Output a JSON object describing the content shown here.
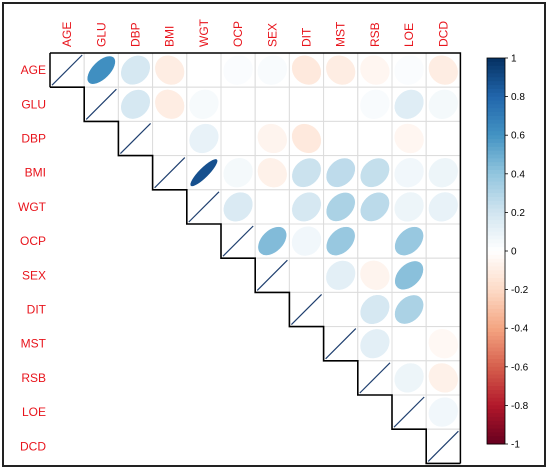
{
  "chart_data": {
    "type": "heatmap",
    "title": "",
    "variables": [
      "AGE",
      "GLU",
      "DBP",
      "BMI",
      "WGT",
      "OCP",
      "SEX",
      "DIT",
      "MST",
      "RSB",
      "LOE",
      "DCD"
    ],
    "colorbar": {
      "range": [
        -1,
        1
      ],
      "ticks": [
        "1",
        "0.8",
        "0.6",
        "0.4",
        "0.2",
        "0",
        "-0.2",
        "-0.4",
        "-0.6",
        "-0.8",
        "-1"
      ]
    },
    "colors": {
      "positive": "#053061",
      "mid": "#ffffff",
      "negative": "#67001f",
      "label": "#e8141c"
    },
    "correlations": [
      {
        "row": "AGE",
        "col": "GLU",
        "r": 0.62
      },
      {
        "row": "AGE",
        "col": "DBP",
        "r": 0.18
      },
      {
        "row": "AGE",
        "col": "BMI",
        "r": -0.1
      },
      {
        "row": "AGE",
        "col": "WGT",
        "r": 0.0
      },
      {
        "row": "AGE",
        "col": "OCP",
        "r": 0.02
      },
      {
        "row": "AGE",
        "col": "SEX",
        "r": 0.03
      },
      {
        "row": "AGE",
        "col": "DIT",
        "r": -0.12
      },
      {
        "row": "AGE",
        "col": "MST",
        "r": -0.1
      },
      {
        "row": "AGE",
        "col": "RSB",
        "r": -0.05
      },
      {
        "row": "AGE",
        "col": "LOE",
        "r": 0.02
      },
      {
        "row": "AGE",
        "col": "DCD",
        "r": -0.1
      },
      {
        "row": "GLU",
        "col": "DBP",
        "r": 0.18
      },
      {
        "row": "GLU",
        "col": "BMI",
        "r": -0.1
      },
      {
        "row": "GLU",
        "col": "WGT",
        "r": 0.04
      },
      {
        "row": "GLU",
        "col": "OCP",
        "r": 0.0
      },
      {
        "row": "GLU",
        "col": "SEX",
        "r": 0.0
      },
      {
        "row": "GLU",
        "col": "DIT",
        "r": 0.0
      },
      {
        "row": "GLU",
        "col": "MST",
        "r": 0.0
      },
      {
        "row": "GLU",
        "col": "RSB",
        "r": 0.03
      },
      {
        "row": "GLU",
        "col": "LOE",
        "r": 0.14
      },
      {
        "row": "GLU",
        "col": "DCD",
        "r": 0.05
      },
      {
        "row": "DBP",
        "col": "BMI",
        "r": 0.0
      },
      {
        "row": "DBP",
        "col": "WGT",
        "r": 0.1
      },
      {
        "row": "DBP",
        "col": "OCP",
        "r": 0.0
      },
      {
        "row": "DBP",
        "col": "SEX",
        "r": -0.06
      },
      {
        "row": "DBP",
        "col": "DIT",
        "r": -0.12
      },
      {
        "row": "DBP",
        "col": "MST",
        "r": 0.0
      },
      {
        "row": "DBP",
        "col": "RSB",
        "r": 0.0
      },
      {
        "row": "DBP",
        "col": "LOE",
        "r": -0.05
      },
      {
        "row": "DBP",
        "col": "DCD",
        "r": 0.0
      },
      {
        "row": "BMI",
        "col": "WGT",
        "r": 0.88
      },
      {
        "row": "BMI",
        "col": "OCP",
        "r": 0.05
      },
      {
        "row": "BMI",
        "col": "SEX",
        "r": -0.08
      },
      {
        "row": "BMI",
        "col": "DIT",
        "r": 0.22
      },
      {
        "row": "BMI",
        "col": "MST",
        "r": 0.26
      },
      {
        "row": "BMI",
        "col": "RSB",
        "r": 0.24
      },
      {
        "row": "BMI",
        "col": "LOE",
        "r": 0.06
      },
      {
        "row": "BMI",
        "col": "DCD",
        "r": 0.08
      },
      {
        "row": "WGT",
        "col": "OCP",
        "r": 0.16
      },
      {
        "row": "WGT",
        "col": "SEX",
        "r": 0.0
      },
      {
        "row": "WGT",
        "col": "DIT",
        "r": 0.18
      },
      {
        "row": "WGT",
        "col": "MST",
        "r": 0.32
      },
      {
        "row": "WGT",
        "col": "RSB",
        "r": 0.27
      },
      {
        "row": "WGT",
        "col": "LOE",
        "r": 0.08
      },
      {
        "row": "WGT",
        "col": "DCD",
        "r": 0.1
      },
      {
        "row": "OCP",
        "col": "SEX",
        "r": 0.44
      },
      {
        "row": "OCP",
        "col": "DIT",
        "r": 0.06
      },
      {
        "row": "OCP",
        "col": "MST",
        "r": 0.38
      },
      {
        "row": "OCP",
        "col": "RSB",
        "r": 0.0
      },
      {
        "row": "OCP",
        "col": "LOE",
        "r": 0.38
      },
      {
        "row": "OCP",
        "col": "DCD",
        "r": 0.0
      },
      {
        "row": "SEX",
        "col": "DIT",
        "r": 0.0
      },
      {
        "row": "SEX",
        "col": "MST",
        "r": 0.12
      },
      {
        "row": "SEX",
        "col": "RSB",
        "r": -0.06
      },
      {
        "row": "SEX",
        "col": "LOE",
        "r": 0.42
      },
      {
        "row": "SEX",
        "col": "DCD",
        "r": 0.0
      },
      {
        "row": "DIT",
        "col": "MST",
        "r": 0.0
      },
      {
        "row": "DIT",
        "col": "RSB",
        "r": 0.18
      },
      {
        "row": "DIT",
        "col": "LOE",
        "r": 0.32
      },
      {
        "row": "DIT",
        "col": "DCD",
        "r": 0.0
      },
      {
        "row": "MST",
        "col": "RSB",
        "r": 0.12
      },
      {
        "row": "MST",
        "col": "LOE",
        "r": 0.0
      },
      {
        "row": "MST",
        "col": "DCD",
        "r": -0.04
      },
      {
        "row": "RSB",
        "col": "LOE",
        "r": 0.08
      },
      {
        "row": "RSB",
        "col": "DCD",
        "r": -0.08
      },
      {
        "row": "LOE",
        "col": "DCD",
        "r": 0.06
      }
    ]
  }
}
